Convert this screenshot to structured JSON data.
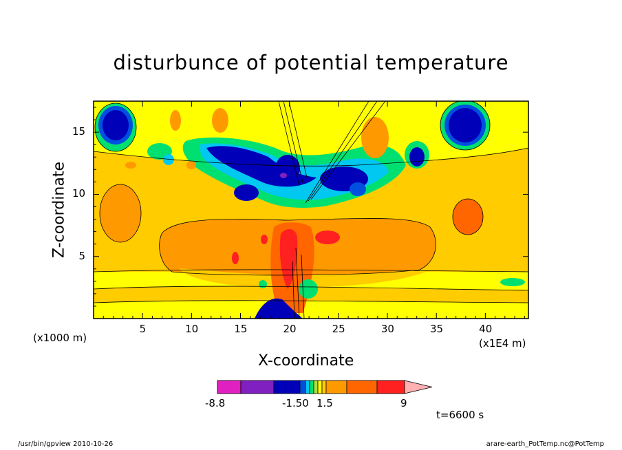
{
  "chart_data": {
    "type": "heatmap",
    "title": "disturbunce of potential temperature",
    "xlabel": "X-coordinate",
    "ylabel": "Z-coordinate",
    "x_unit": "(x1E4 m)",
    "y_unit": "(x1000 m)",
    "x_ticks": [
      "5",
      "10",
      "15",
      "20",
      "25",
      "30",
      "35",
      "40"
    ],
    "y_ticks": [
      "5",
      "10",
      "15"
    ],
    "xlim": [
      0,
      44.4
    ],
    "ylim": [
      0,
      17.5
    ],
    "time_label": "t=6600 s",
    "colorbar": {
      "labels": [
        "-8.8",
        "-1.50",
        "1.5",
        "9"
      ],
      "colors": [
        "#e020c0",
        "#8020c0",
        "#0000b8",
        "#0050e0",
        "#00c8f0",
        "#00e070",
        "#a8e040",
        "#ffff00",
        "#ffcc00",
        "#ff9900",
        "#ff6600",
        "#ff2020",
        "#ff7070",
        "#ffb0b0"
      ],
      "orientation": "horizontal"
    }
  },
  "footer": {
    "left": "/usr/bin/gpview   2010-10-26",
    "right": "arare-earth_PotTemp.nc@PotTemp"
  }
}
